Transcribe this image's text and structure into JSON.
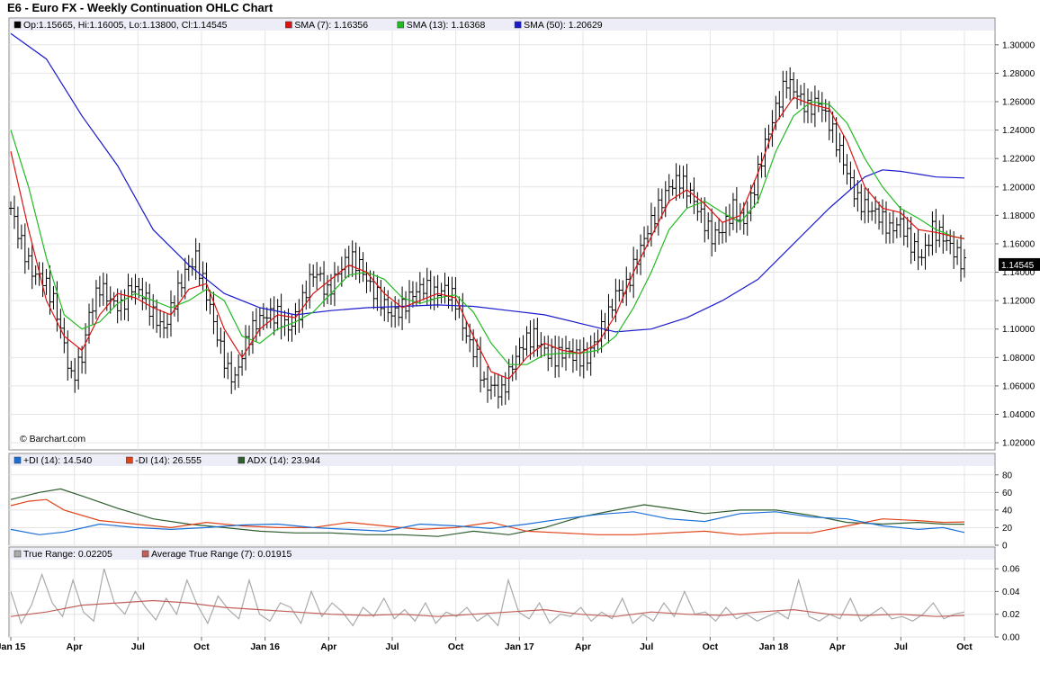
{
  "title": "E6 - Euro FX - Weekly Continuation OHLC Chart",
  "copyright": "© Barchart.com",
  "last_price": "1.14545",
  "colors": {
    "ohlc": "#000000",
    "sma7": "#dd1111",
    "sma13": "#22bb22",
    "sma50": "#1a1acc",
    "plus_di": "#1a6fd6",
    "minus_di": "#e0441a",
    "adx": "#2e5e2e",
    "true_range": "#aaaaaa",
    "atr": "#c0605a",
    "legend_bg": "#ededf7"
  },
  "legends": {
    "price": [
      {
        "swatch": "#000000",
        "text": "Op:1.15665, Hi:1.16005, Lo:1.13800, Cl:1.14545"
      },
      {
        "swatch": "#dd1111",
        "text": "SMA (7): 1.16356"
      },
      {
        "swatch": "#22bb22",
        "text": "SMA (13): 1.16368"
      },
      {
        "swatch": "#1a1acc",
        "text": "SMA (50): 1.20629"
      }
    ],
    "dmi": [
      {
        "swatch": "#1a6fd6",
        "text": "+DI (14): 14.540"
      },
      {
        "swatch": "#e0441a",
        "text": "-DI (14): 26.555"
      },
      {
        "swatch": "#2e5e2e",
        "text": "ADX (14): 23.944"
      }
    ],
    "tr": [
      {
        "swatch": "#aaaaaa",
        "text": "True Range: 0.02205"
      },
      {
        "swatch": "#c0605a",
        "text": "Average True Range (7): 0.01915"
      }
    ]
  },
  "chart_data": {
    "type": "ohlc",
    "x_labels": [
      "Jan 15",
      "Apr",
      "Jul",
      "Oct",
      "Jan 16",
      "Apr",
      "Jul",
      "Oct",
      "Jan 17",
      "Apr",
      "Jul",
      "Oct",
      "Jan 18",
      "Apr",
      "Jul",
      "Oct"
    ],
    "price_axis": {
      "ticks": [
        "1.30000",
        "1.28000",
        "1.26000",
        "1.24000",
        "1.22000",
        "1.20000",
        "1.18000",
        "1.16000",
        "1.14000",
        "1.12000",
        "1.10000",
        "1.08000",
        "1.06000",
        "1.04000",
        "1.02000"
      ],
      "ylim": [
        1.015,
        1.31
      ]
    },
    "dmi_axis": {
      "ticks": [
        "80",
        "60",
        "40",
        "20",
        "0"
      ],
      "ylim": [
        0,
        90
      ]
    },
    "tr_axis": {
      "ticks": [
        "0.06",
        "0.04",
        "0.02",
        "0.00"
      ],
      "ylim": [
        0,
        0.068
      ]
    },
    "close_path": [
      [
        0,
        1.185
      ],
      [
        3,
        1.16
      ],
      [
        6,
        1.14
      ],
      [
        9,
        1.135
      ],
      [
        12,
        1.12
      ],
      [
        14,
        1.1
      ],
      [
        17,
        1.065
      ],
      [
        20,
        1.08
      ],
      [
        22,
        1.11
      ],
      [
        25,
        1.13
      ],
      [
        28,
        1.12
      ],
      [
        31,
        1.115
      ],
      [
        34,
        1.13
      ],
      [
        37,
        1.125
      ],
      [
        40,
        1.11
      ],
      [
        43,
        1.1
      ],
      [
        46,
        1.12
      ],
      [
        49,
        1.14
      ],
      [
        52,
        1.15
      ],
      [
        55,
        1.125
      ],
      [
        58,
        1.095
      ],
      [
        61,
        1.07
      ],
      [
        63,
        1.065
      ],
      [
        66,
        1.09
      ],
      [
        69,
        1.105
      ],
      [
        72,
        1.11
      ],
      [
        75,
        1.11
      ],
      [
        78,
        1.1
      ],
      [
        81,
        1.112
      ],
      [
        84,
        1.135
      ],
      [
        86,
        1.14
      ],
      [
        89,
        1.125
      ],
      [
        92,
        1.14
      ],
      [
        95,
        1.15
      ],
      [
        98,
        1.145
      ],
      [
        101,
        1.13
      ],
      [
        104,
        1.12
      ],
      [
        107,
        1.11
      ],
      [
        110,
        1.115
      ],
      [
        113,
        1.125
      ],
      [
        116,
        1.13
      ],
      [
        119,
        1.125
      ],
      [
        122,
        1.128
      ],
      [
        125,
        1.12
      ],
      [
        128,
        1.095
      ],
      [
        131,
        1.08
      ],
      [
        133,
        1.06
      ],
      [
        135,
        1.06
      ],
      [
        138,
        1.055
      ],
      [
        141,
        1.075
      ],
      [
        144,
        1.09
      ],
      [
        147,
        1.095
      ],
      [
        150,
        1.085
      ],
      [
        153,
        1.08
      ],
      [
        156,
        1.085
      ],
      [
        159,
        1.08
      ],
      [
        162,
        1.08
      ],
      [
        165,
        1.095
      ],
      [
        168,
        1.11
      ],
      [
        170,
        1.125
      ],
      [
        173,
        1.13
      ],
      [
        176,
        1.15
      ],
      [
        179,
        1.17
      ],
      [
        182,
        1.185
      ],
      [
        185,
        1.2
      ],
      [
        188,
        1.205
      ],
      [
        191,
        1.195
      ],
      [
        194,
        1.18
      ],
      [
        197,
        1.165
      ],
      [
        200,
        1.17
      ],
      [
        203,
        1.185
      ],
      [
        206,
        1.175
      ],
      [
        209,
        1.2
      ],
      [
        212,
        1.23
      ],
      [
        215,
        1.255
      ],
      [
        218,
        1.275
      ],
      [
        221,
        1.265
      ],
      [
        224,
        1.255
      ],
      [
        227,
        1.26
      ],
      [
        230,
        1.245
      ],
      [
        233,
        1.225
      ],
      [
        235,
        1.21
      ],
      [
        238,
        1.19
      ],
      [
        241,
        1.185
      ],
      [
        244,
        1.18
      ],
      [
        247,
        1.17
      ],
      [
        250,
        1.175
      ],
      [
        253,
        1.16
      ],
      [
        256,
        1.15
      ],
      [
        259,
        1.17
      ],
      [
        262,
        1.165
      ],
      [
        265,
        1.155
      ],
      [
        268,
        1.145
      ]
    ],
    "sma7": [
      [
        0,
        1.225
      ],
      [
        5,
        1.17
      ],
      [
        10,
        1.12
      ],
      [
        15,
        1.095
      ],
      [
        20,
        1.085
      ],
      [
        25,
        1.11
      ],
      [
        30,
        1.125
      ],
      [
        35,
        1.122
      ],
      [
        40,
        1.115
      ],
      [
        45,
        1.11
      ],
      [
        50,
        1.128
      ],
      [
        55,
        1.132
      ],
      [
        60,
        1.1
      ],
      [
        65,
        1.08
      ],
      [
        70,
        1.1
      ],
      [
        75,
        1.11
      ],
      [
        80,
        1.108
      ],
      [
        85,
        1.125
      ],
      [
        90,
        1.135
      ],
      [
        95,
        1.145
      ],
      [
        100,
        1.14
      ],
      [
        105,
        1.125
      ],
      [
        110,
        1.115
      ],
      [
        115,
        1.12
      ],
      [
        120,
        1.125
      ],
      [
        125,
        1.122
      ],
      [
        130,
        1.095
      ],
      [
        135,
        1.07
      ],
      [
        140,
        1.065
      ],
      [
        145,
        1.08
      ],
      [
        150,
        1.09
      ],
      [
        155,
        1.085
      ],
      [
        160,
        1.083
      ],
      [
        165,
        1.09
      ],
      [
        170,
        1.11
      ],
      [
        175,
        1.14
      ],
      [
        180,
        1.165
      ],
      [
        185,
        1.19
      ],
      [
        190,
        1.198
      ],
      [
        195,
        1.188
      ],
      [
        200,
        1.175
      ],
      [
        205,
        1.18
      ],
      [
        210,
        1.21
      ],
      [
        215,
        1.245
      ],
      [
        220,
        1.263
      ],
      [
        225,
        1.258
      ],
      [
        230,
        1.255
      ],
      [
        235,
        1.232
      ],
      [
        240,
        1.2
      ],
      [
        245,
        1.185
      ],
      [
        250,
        1.182
      ],
      [
        255,
        1.17
      ],
      [
        260,
        1.168
      ],
      [
        265,
        1.165
      ],
      [
        268,
        1.1636
      ]
    ],
    "sma13": [
      [
        0,
        1.24
      ],
      [
        5,
        1.2
      ],
      [
        10,
        1.15
      ],
      [
        15,
        1.11
      ],
      [
        20,
        1.1
      ],
      [
        25,
        1.105
      ],
      [
        30,
        1.118
      ],
      [
        35,
        1.125
      ],
      [
        40,
        1.12
      ],
      [
        45,
        1.115
      ],
      [
        50,
        1.12
      ],
      [
        55,
        1.128
      ],
      [
        60,
        1.12
      ],
      [
        65,
        1.095
      ],
      [
        70,
        1.09
      ],
      [
        75,
        1.1
      ],
      [
        80,
        1.105
      ],
      [
        85,
        1.112
      ],
      [
        90,
        1.125
      ],
      [
        95,
        1.138
      ],
      [
        100,
        1.14
      ],
      [
        105,
        1.135
      ],
      [
        110,
        1.122
      ],
      [
        115,
        1.118
      ],
      [
        120,
        1.122
      ],
      [
        125,
        1.124
      ],
      [
        130,
        1.112
      ],
      [
        135,
        1.09
      ],
      [
        140,
        1.075
      ],
      [
        145,
        1.075
      ],
      [
        150,
        1.082
      ],
      [
        155,
        1.083
      ],
      [
        160,
        1.083
      ],
      [
        165,
        1.085
      ],
      [
        170,
        1.095
      ],
      [
        175,
        1.115
      ],
      [
        180,
        1.14
      ],
      [
        185,
        1.17
      ],
      [
        190,
        1.185
      ],
      [
        195,
        1.19
      ],
      [
        200,
        1.182
      ],
      [
        205,
        1.175
      ],
      [
        210,
        1.19
      ],
      [
        215,
        1.225
      ],
      [
        220,
        1.25
      ],
      [
        225,
        1.26
      ],
      [
        230,
        1.258
      ],
      [
        235,
        1.245
      ],
      [
        240,
        1.22
      ],
      [
        245,
        1.2
      ],
      [
        250,
        1.185
      ],
      [
        255,
        1.178
      ],
      [
        260,
        1.17
      ],
      [
        265,
        1.165
      ],
      [
        268,
        1.1637
      ]
    ],
    "sma50": [
      [
        0,
        1.325
      ],
      [
        10,
        1.29
      ],
      [
        20,
        1.25
      ],
      [
        30,
        1.215
      ],
      [
        40,
        1.17
      ],
      [
        50,
        1.145
      ],
      [
        60,
        1.125
      ],
      [
        70,
        1.115
      ],
      [
        80,
        1.11
      ],
      [
        90,
        1.113
      ],
      [
        100,
        1.115
      ],
      [
        110,
        1.116
      ],
      [
        120,
        1.117
      ],
      [
        130,
        1.116
      ],
      [
        140,
        1.113
      ],
      [
        150,
        1.11
      ],
      [
        160,
        1.104
      ],
      [
        170,
        1.098
      ],
      [
        180,
        1.1
      ],
      [
        190,
        1.108
      ],
      [
        200,
        1.12
      ],
      [
        210,
        1.135
      ],
      [
        220,
        1.16
      ],
      [
        230,
        1.185
      ],
      [
        240,
        1.207
      ],
      [
        245,
        1.212
      ],
      [
        250,
        1.211
      ],
      [
        255,
        1.209
      ],
      [
        260,
        1.207
      ],
      [
        268,
        1.2063
      ]
    ],
    "plus_di": [
      [
        0,
        18
      ],
      [
        8,
        12
      ],
      [
        15,
        15
      ],
      [
        25,
        24
      ],
      [
        35,
        20
      ],
      [
        45,
        18
      ],
      [
        55,
        20
      ],
      [
        65,
        23
      ],
      [
        75,
        24
      ],
      [
        85,
        20
      ],
      [
        95,
        18
      ],
      [
        105,
        16
      ],
      [
        115,
        24
      ],
      [
        125,
        22
      ],
      [
        135,
        19
      ],
      [
        145,
        24
      ],
      [
        155,
        30
      ],
      [
        165,
        35
      ],
      [
        175,
        38
      ],
      [
        185,
        30
      ],
      [
        195,
        27
      ],
      [
        205,
        36
      ],
      [
        215,
        38
      ],
      [
        225,
        32
      ],
      [
        235,
        30
      ],
      [
        245,
        22
      ],
      [
        255,
        18
      ],
      [
        262,
        20
      ],
      [
        268,
        14.5
      ]
    ],
    "minus_di": [
      [
        0,
        45
      ],
      [
        5,
        50
      ],
      [
        10,
        52
      ],
      [
        15,
        40
      ],
      [
        25,
        28
      ],
      [
        35,
        24
      ],
      [
        45,
        20
      ],
      [
        55,
        26
      ],
      [
        65,
        22
      ],
      [
        75,
        20
      ],
      [
        85,
        20
      ],
      [
        95,
        26
      ],
      [
        105,
        22
      ],
      [
        115,
        18
      ],
      [
        125,
        20
      ],
      [
        135,
        26
      ],
      [
        145,
        16
      ],
      [
        155,
        14
      ],
      [
        165,
        12
      ],
      [
        175,
        12
      ],
      [
        185,
        14
      ],
      [
        195,
        16
      ],
      [
        205,
        12
      ],
      [
        215,
        14
      ],
      [
        225,
        14
      ],
      [
        235,
        22
      ],
      [
        245,
        30
      ],
      [
        255,
        28
      ],
      [
        262,
        26
      ],
      [
        268,
        26.5
      ]
    ],
    "adx": [
      [
        0,
        52
      ],
      [
        8,
        60
      ],
      [
        14,
        64
      ],
      [
        20,
        56
      ],
      [
        30,
        42
      ],
      [
        40,
        30
      ],
      [
        50,
        24
      ],
      [
        60,
        20
      ],
      [
        70,
        16
      ],
      [
        80,
        14
      ],
      [
        90,
        14
      ],
      [
        100,
        12
      ],
      [
        110,
        12
      ],
      [
        120,
        10
      ],
      [
        130,
        16
      ],
      [
        140,
        12
      ],
      [
        150,
        20
      ],
      [
        160,
        32
      ],
      [
        170,
        40
      ],
      [
        178,
        46
      ],
      [
        185,
        42
      ],
      [
        195,
        36
      ],
      [
        205,
        40
      ],
      [
        215,
        40
      ],
      [
        225,
        34
      ],
      [
        235,
        26
      ],
      [
        245,
        24
      ],
      [
        255,
        26
      ],
      [
        262,
        24
      ],
      [
        268,
        23.9
      ]
    ],
    "true_range": [
      0.04,
      0.012,
      0.028,
      0.055,
      0.03,
      0.018,
      0.05,
      0.022,
      0.014,
      0.06,
      0.03,
      0.02,
      0.04,
      0.026,
      0.015,
      0.034,
      0.02,
      0.05,
      0.028,
      0.012,
      0.036,
      0.024,
      0.016,
      0.05,
      0.02,
      0.014,
      0.03,
      0.026,
      0.012,
      0.04,
      0.018,
      0.03,
      0.022,
      0.01,
      0.026,
      0.018,
      0.034,
      0.016,
      0.024,
      0.014,
      0.03,
      0.012,
      0.022,
      0.018,
      0.026,
      0.014,
      0.02,
      0.01,
      0.05,
      0.022,
      0.016,
      0.03,
      0.012,
      0.02,
      0.018,
      0.026,
      0.014,
      0.022,
      0.016,
      0.034,
      0.012,
      0.02,
      0.014,
      0.03,
      0.018,
      0.04,
      0.02,
      0.022,
      0.014,
      0.026,
      0.016,
      0.02,
      0.014,
      0.018,
      0.022,
      0.016,
      0.05,
      0.018,
      0.014,
      0.02,
      0.016,
      0.034,
      0.014,
      0.02,
      0.026,
      0.016,
      0.018,
      0.014,
      0.02,
      0.03,
      0.016,
      0.02,
      0.022
    ],
    "atr": [
      [
        0,
        0.018
      ],
      [
        10,
        0.022
      ],
      [
        20,
        0.028
      ],
      [
        30,
        0.03
      ],
      [
        40,
        0.032
      ],
      [
        50,
        0.03
      ],
      [
        60,
        0.026
      ],
      [
        70,
        0.024
      ],
      [
        80,
        0.022
      ],
      [
        90,
        0.02
      ],
      [
        100,
        0.019
      ],
      [
        110,
        0.02
      ],
      [
        120,
        0.018
      ],
      [
        130,
        0.02
      ],
      [
        140,
        0.022
      ],
      [
        150,
        0.024
      ],
      [
        160,
        0.02
      ],
      [
        170,
        0.018
      ],
      [
        180,
        0.022
      ],
      [
        190,
        0.02
      ],
      [
        200,
        0.019
      ],
      [
        210,
        0.022
      ],
      [
        220,
        0.024
      ],
      [
        230,
        0.02
      ],
      [
        240,
        0.019
      ],
      [
        250,
        0.02
      ],
      [
        260,
        0.018
      ],
      [
        268,
        0.019
      ]
    ]
  }
}
